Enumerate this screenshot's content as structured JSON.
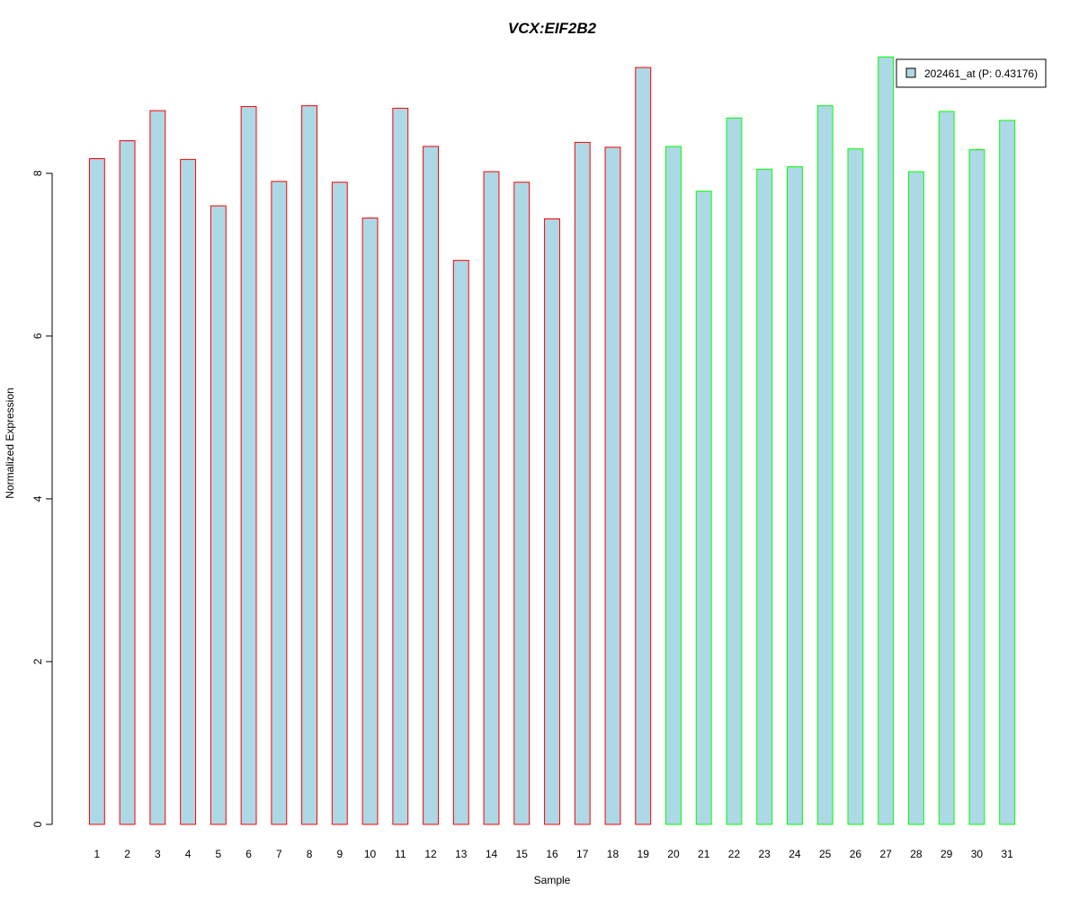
{
  "chart_data": {
    "type": "bar",
    "title": "VCX:EIF2B2",
    "xlabel": "Sample",
    "ylabel": "Normalized Expression",
    "ylim": [
      0,
      9.5
    ],
    "yticks": [
      0,
      2,
      4,
      6,
      8
    ],
    "grid": false,
    "legend_position": "top-right",
    "legend_label": "202461_at (P: 0.43176)",
    "categories": [
      "1",
      "2",
      "3",
      "4",
      "5",
      "6",
      "7",
      "8",
      "9",
      "10",
      "11",
      "12",
      "13",
      "14",
      "15",
      "16",
      "17",
      "18",
      "19",
      "20",
      "21",
      "22",
      "23",
      "24",
      "25",
      "26",
      "27",
      "28",
      "29",
      "30",
      "31"
    ],
    "values": [
      8.18,
      8.4,
      8.77,
      8.17,
      7.6,
      8.82,
      7.9,
      8.83,
      7.89,
      7.45,
      8.8,
      8.33,
      6.93,
      8.02,
      7.89,
      7.44,
      8.38,
      8.32,
      9.3,
      8.33,
      7.78,
      8.68,
      8.05,
      8.08,
      8.83,
      8.3,
      9.43,
      8.02,
      8.76,
      8.29,
      8.65
    ],
    "groups": [
      "red",
      "red",
      "red",
      "red",
      "red",
      "red",
      "red",
      "red",
      "red",
      "red",
      "red",
      "red",
      "red",
      "red",
      "red",
      "red",
      "red",
      "red",
      "red",
      "green",
      "green",
      "green",
      "green",
      "green",
      "green",
      "green",
      "green",
      "green",
      "green",
      "green",
      "green"
    ],
    "colors": {
      "fill": "#add8e6",
      "group_red": "#ff0000",
      "group_green": "#00ff00",
      "title": "#0000cd",
      "axis": "#000000"
    }
  }
}
